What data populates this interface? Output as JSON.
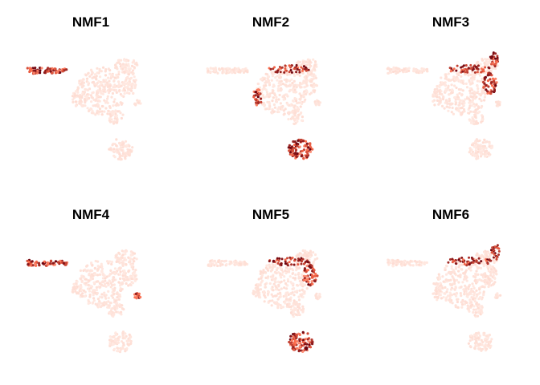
{
  "figure": {
    "background": "#ffffff",
    "color_scale": {
      "low": "#fff5f0",
      "mid": "#fb6a4a",
      "high": "#67000d"
    }
  },
  "chart_data": {
    "type": "scatter",
    "description_free_layout": true,
    "axes_visible": false,
    "grid": false,
    "legend": "none",
    "panels": [
      {
        "title": "NMF1",
        "hotspots": [
          "left-arm"
        ]
      },
      {
        "title": "NMF2",
        "hotspots": [
          "top-ridge",
          "left-lobe-edge",
          "bottom-cluster"
        ]
      },
      {
        "title": "NMF3",
        "hotspots": [
          "top-ridge",
          "top-right-tip",
          "right-lobe"
        ]
      },
      {
        "title": "NMF4",
        "hotspots": [
          "left-arm",
          "small-right-cluster"
        ]
      },
      {
        "title": "NMF5",
        "hotspots": [
          "top-ridge",
          "right-lobe",
          "bottom-cluster"
        ]
      },
      {
        "title": "NMF6",
        "hotspots": [
          "top-ridge",
          "top-right-tip"
        ]
      }
    ]
  }
}
